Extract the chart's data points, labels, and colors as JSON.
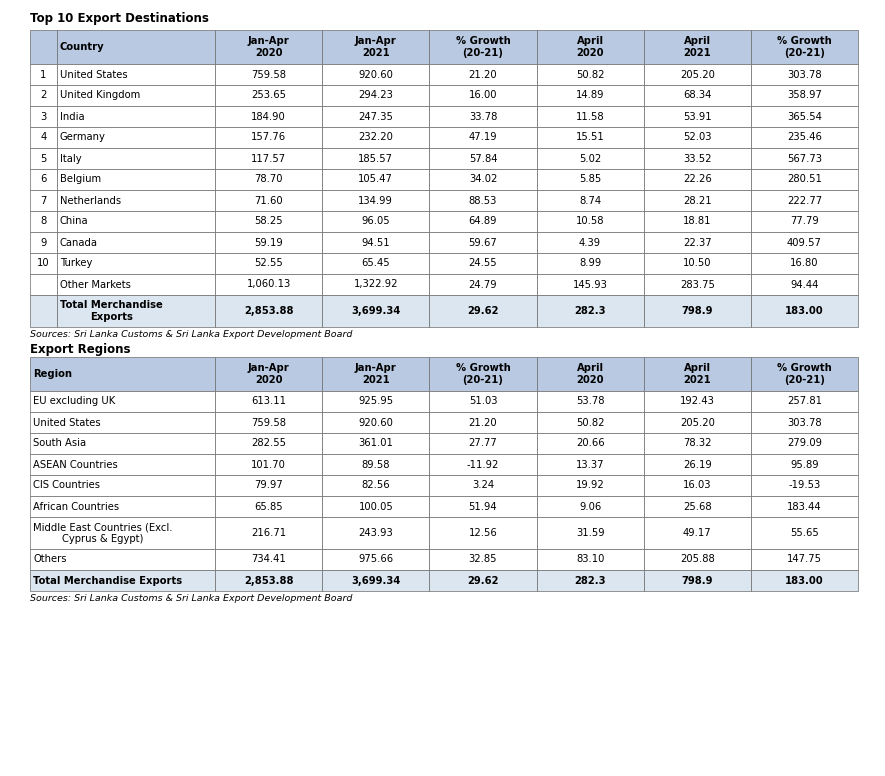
{
  "title1": "Top 10 Export Destinations",
  "title2": "Export Regions",
  "source_text": "Sources: Sri Lanka Customs & Sri Lanka Export Development Board",
  "col_headers1": [
    "",
    "Country",
    "Jan-Apr\n2020",
    "Jan-Apr\n2021",
    "% Growth\n(20-21)",
    "April\n2020",
    "April\n2021",
    "% Growth\n(20-21)"
  ],
  "col_headers2": [
    "Region",
    "Jan-Apr\n2020",
    "Jan-Apr\n2021",
    "% Growth\n(20-21)",
    "April\n2020",
    "April\n2021",
    "% Growth\n(20-21)"
  ],
  "table1_rows": [
    [
      "1",
      "United States",
      "759.58",
      "920.60",
      "21.20",
      "50.82",
      "205.20",
      "303.78"
    ],
    [
      "2",
      "United Kingdom",
      "253.65",
      "294.23",
      "16.00",
      "14.89",
      "68.34",
      "358.97"
    ],
    [
      "3",
      "India",
      "184.90",
      "247.35",
      "33.78",
      "11.58",
      "53.91",
      "365.54"
    ],
    [
      "4",
      "Germany",
      "157.76",
      "232.20",
      "47.19",
      "15.51",
      "52.03",
      "235.46"
    ],
    [
      "5",
      "Italy",
      "117.57",
      "185.57",
      "57.84",
      "5.02",
      "33.52",
      "567.73"
    ],
    [
      "6",
      "Belgium",
      "78.70",
      "105.47",
      "34.02",
      "5.85",
      "22.26",
      "280.51"
    ],
    [
      "7",
      "Netherlands",
      "71.60",
      "134.99",
      "88.53",
      "8.74",
      "28.21",
      "222.77"
    ],
    [
      "8",
      "China",
      "58.25",
      "96.05",
      "64.89",
      "10.58",
      "18.81",
      "77.79"
    ],
    [
      "9",
      "Canada",
      "59.19",
      "94.51",
      "59.67",
      "4.39",
      "22.37",
      "409.57"
    ],
    [
      "10",
      "Turkey",
      "52.55",
      "65.45",
      "24.55",
      "8.99",
      "10.50",
      "16.80"
    ],
    [
      "",
      "Other Markets",
      "1,060.13",
      "1,322.92",
      "24.79",
      "145.93",
      "283.75",
      "94.44"
    ],
    [
      "",
      "Total Merchandise\nExports",
      "2,853.88",
      "3,699.34",
      "29.62",
      "282.3",
      "798.9",
      "183.00"
    ]
  ],
  "table2_rows": [
    [
      "EU excluding UK",
      "613.11",
      "925.95",
      "51.03",
      "53.78",
      "192.43",
      "257.81"
    ],
    [
      "United States",
      "759.58",
      "920.60",
      "21.20",
      "50.82",
      "205.20",
      "303.78"
    ],
    [
      "South Asia",
      "282.55",
      "361.01",
      "27.77",
      "20.66",
      "78.32",
      "279.09"
    ],
    [
      "ASEAN Countries",
      "101.70",
      "89.58",
      "-11.92",
      "13.37",
      "26.19",
      "95.89"
    ],
    [
      "CIS Countries",
      "79.97",
      "82.56",
      "3.24",
      "19.92",
      "16.03",
      "-19.53"
    ],
    [
      "African Countries",
      "65.85",
      "100.05",
      "51.94",
      "9.06",
      "25.68",
      "183.44"
    ],
    [
      "Middle East Countries (Excl.\nCyprus & Egypt)",
      "216.71",
      "243.93",
      "12.56",
      "31.59",
      "49.17",
      "55.65"
    ],
    [
      "Others",
      "734.41",
      "975.66",
      "32.85",
      "83.10",
      "205.88",
      "147.75"
    ],
    [
      "Total Merchandise Exports",
      "2,853.88",
      "3,699.34",
      "29.62",
      "282.3",
      "798.9",
      "183.00"
    ]
  ],
  "header_bg": "#b8c9e1",
  "total_row_bg": "#dce6f1",
  "border_color": "#6b6b6b",
  "text_color": "#000000"
}
